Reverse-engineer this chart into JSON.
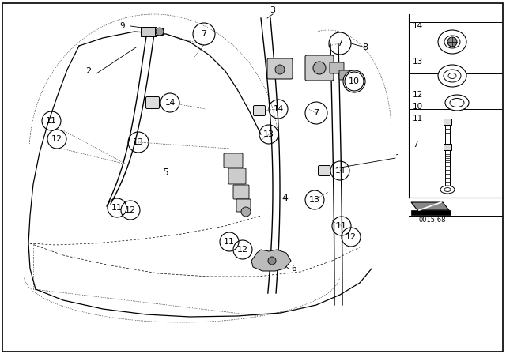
{
  "bg_color": "#ffffff",
  "border_color": "#000000",
  "diagram_number": "0015;68",
  "fig_width": 6.4,
  "fig_height": 4.48,
  "dpi": 100,
  "seat_outline_color": "#000000",
  "line_color": "#000000",
  "gray_part": "#aaaaaa",
  "dark_gray": "#666666"
}
